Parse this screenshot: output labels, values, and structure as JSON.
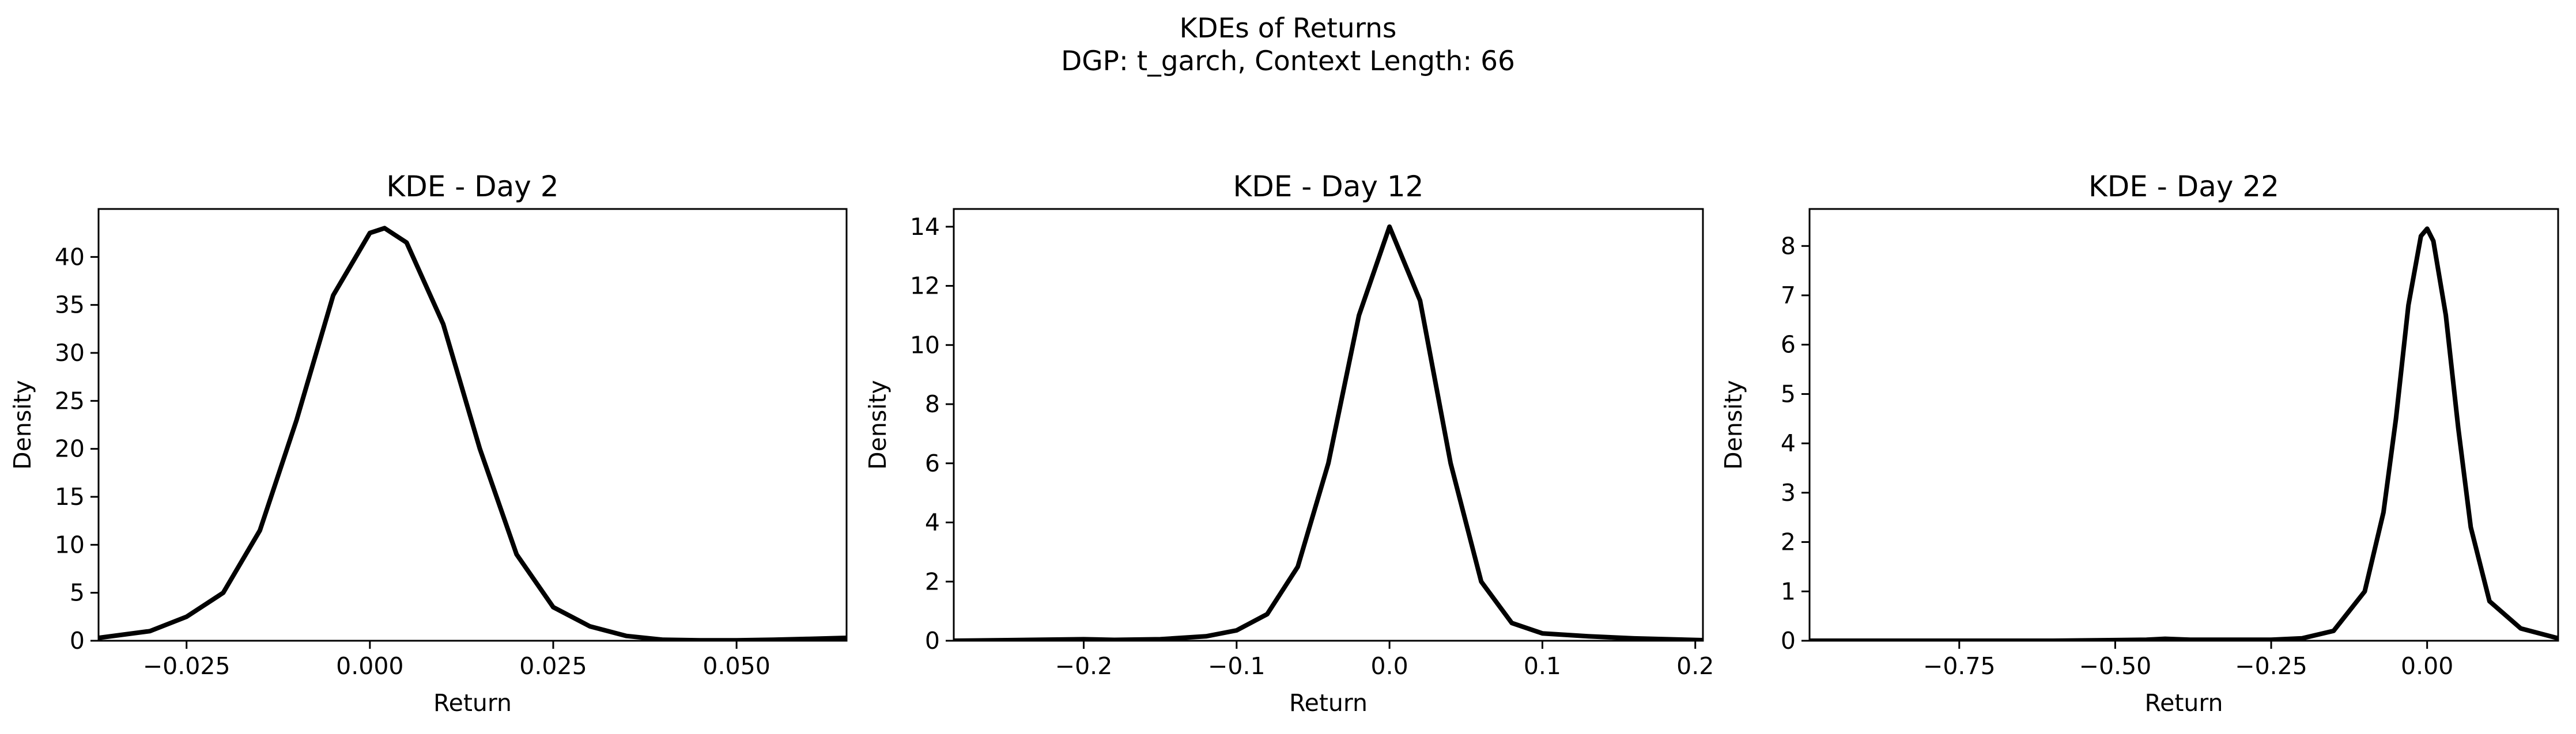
{
  "figure": {
    "title_line1": "KDEs of Returns",
    "title_line2": "DGP: t_garch, Context Length: 66",
    "line_color": "#000000"
  },
  "chart_data": [
    {
      "type": "line",
      "title": "KDE - Day 2",
      "xlabel": "Return",
      "ylabel": "Density",
      "xlim": [
        -0.037,
        0.065
      ],
      "ylim": [
        0,
        45
      ],
      "xticks": [
        -0.025,
        0.0,
        0.025,
        0.05
      ],
      "xtick_labels": [
        "−0.025",
        "0.000",
        "0.025",
        "0.050"
      ],
      "yticks": [
        0,
        5,
        10,
        15,
        20,
        25,
        30,
        35,
        40
      ],
      "ytick_labels": [
        "0",
        "5",
        "10",
        "15",
        "20",
        "25",
        "30",
        "35",
        "40"
      ],
      "grid": false,
      "series": [
        {
          "x": [
            -0.037,
            -0.03,
            -0.025,
            -0.02,
            -0.015,
            -0.01,
            -0.005,
            0.0,
            0.002,
            0.005,
            0.01,
            0.015,
            0.02,
            0.025,
            0.03,
            0.035,
            0.04,
            0.045,
            0.05,
            0.055,
            0.06,
            0.065
          ],
          "y": [
            0.3,
            1.0,
            2.5,
            5.0,
            11.5,
            23.0,
            36.0,
            42.5,
            43.0,
            41.5,
            33.0,
            20.0,
            9.0,
            3.5,
            1.5,
            0.5,
            0.1,
            0.05,
            0.05,
            0.1,
            0.2,
            0.3
          ]
        }
      ]
    },
    {
      "type": "line",
      "title": "KDE - Day 12",
      "xlabel": "Return",
      "ylabel": "Density",
      "xlim": [
        -0.285,
        0.205
      ],
      "ylim": [
        0,
        14.6
      ],
      "xticks": [
        -0.2,
        -0.1,
        0.0,
        0.1,
        0.2
      ],
      "xtick_labels": [
        "−0.2",
        "−0.1",
        "0.0",
        "0.1",
        "0.2"
      ],
      "yticks": [
        0,
        2,
        4,
        6,
        8,
        10,
        12,
        14
      ],
      "ytick_labels": [
        "0",
        "2",
        "4",
        "6",
        "8",
        "10",
        "12",
        "14"
      ],
      "grid": false,
      "series": [
        {
          "x": [
            -0.285,
            -0.25,
            -0.2,
            -0.18,
            -0.15,
            -0.12,
            -0.1,
            -0.08,
            -0.06,
            -0.04,
            -0.02,
            0.0,
            0.02,
            0.04,
            0.06,
            0.08,
            0.1,
            0.13,
            0.16,
            0.205
          ],
          "y": [
            0.0,
            0.02,
            0.05,
            0.03,
            0.05,
            0.15,
            0.35,
            0.9,
            2.5,
            6.0,
            11.0,
            14.0,
            11.5,
            6.0,
            2.0,
            0.6,
            0.25,
            0.15,
            0.08,
            0.02
          ]
        }
      ]
    },
    {
      "type": "line",
      "title": "KDE - Day 22",
      "xlabel": "Return",
      "ylabel": "Density",
      "xlim": [
        -0.99,
        0.21
      ],
      "ylim": [
        0,
        8.75
      ],
      "xticks": [
        -0.75,
        -0.5,
        -0.25,
        0.0
      ],
      "xtick_labels": [
        "−0.75",
        "−0.50",
        "−0.25",
        "0.00"
      ],
      "yticks": [
        0,
        1,
        2,
        3,
        4,
        5,
        6,
        7,
        8
      ],
      "ytick_labels": [
        "0",
        "1",
        "2",
        "3",
        "4",
        "5",
        "6",
        "7",
        "8"
      ],
      "grid": false,
      "series": [
        {
          "x": [
            -0.99,
            -0.8,
            -0.6,
            -0.45,
            -0.42,
            -0.38,
            -0.25,
            -0.2,
            -0.15,
            -0.1,
            -0.07,
            -0.05,
            -0.03,
            -0.01,
            0.0,
            0.01,
            0.03,
            0.05,
            0.07,
            0.1,
            0.15,
            0.21
          ],
          "y": [
            0.0,
            0.0,
            0.0,
            0.02,
            0.04,
            0.02,
            0.02,
            0.05,
            0.2,
            1.0,
            2.6,
            4.5,
            6.8,
            8.2,
            8.35,
            8.1,
            6.6,
            4.3,
            2.3,
            0.8,
            0.25,
            0.05
          ]
        }
      ]
    }
  ]
}
